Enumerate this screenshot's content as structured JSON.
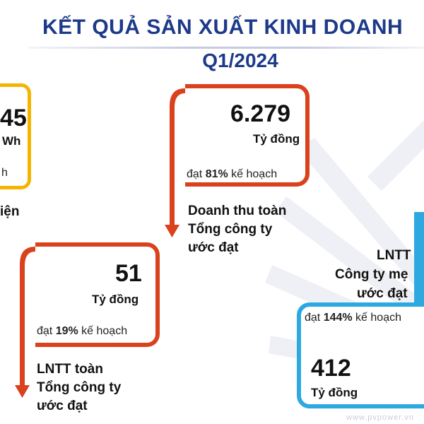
{
  "title": {
    "line1": "KẾT QUẢ SẢN XUẤT KINH DOANH",
    "line2": "Q1/2024"
  },
  "cards": {
    "left_partial": {
      "value": "45",
      "unit": "Wh",
      "note": "h",
      "caption": "iện"
    },
    "revenue": {
      "value": "6.279",
      "unit": "Tỷ đồng",
      "note_pre": "đạt ",
      "note_pct": "81%",
      "note_post": " kế hoạch",
      "caption_l1": "Doanh thu toàn",
      "caption_l2": "Tổng công ty",
      "caption_l3": "ước đạt"
    },
    "profit_corp": {
      "value": "51",
      "unit": "Tỷ đồng",
      "note_pre": "đạt ",
      "note_pct": "19%",
      "note_post": " kế hoạch",
      "caption_l1": "LNTT toàn",
      "caption_l2": "Tổng công ty",
      "caption_l3": "ước đạt"
    },
    "profit_parent": {
      "caption_l1": "LNTT",
      "caption_l2": "Công ty mẹ",
      "caption_l3": "ước đạt",
      "note_pre": "đạt ",
      "note_pct": "144%",
      "note_post": " kế hoạch",
      "value": "412",
      "unit": "Tỷ đồng"
    }
  },
  "watermark": "www.pvpower.vn",
  "colors": {
    "title": "#1d3a8a",
    "orange": "#d9421c",
    "yellow": "#f5b400",
    "blue": "#2ea8e0"
  }
}
